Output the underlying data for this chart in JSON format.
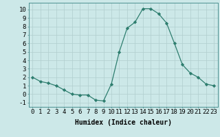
{
  "x": [
    0,
    1,
    2,
    3,
    4,
    5,
    6,
    7,
    8,
    9,
    10,
    11,
    12,
    13,
    14,
    15,
    16,
    17,
    18,
    19,
    20,
    21,
    22,
    23
  ],
  "y": [
    2.0,
    1.5,
    1.3,
    1.0,
    0.5,
    0.0,
    -0.1,
    -0.1,
    -0.7,
    -0.8,
    1.2,
    5.0,
    7.8,
    8.5,
    10.1,
    10.1,
    9.5,
    8.4,
    6.0,
    3.5,
    2.5,
    2.0,
    1.2,
    1.0
  ],
  "line_color": "#2d7d6e",
  "marker": "D",
  "marker_size": 2.2,
  "xlabel": "Humidex (Indice chaleur)",
  "ylim": [
    -1.5,
    10.8
  ],
  "xlim": [
    -0.5,
    23.5
  ],
  "yticks": [
    -1,
    0,
    1,
    2,
    3,
    4,
    5,
    6,
    7,
    8,
    9,
    10
  ],
  "xticks": [
    0,
    1,
    2,
    3,
    4,
    5,
    6,
    7,
    8,
    9,
    10,
    11,
    12,
    13,
    14,
    15,
    16,
    17,
    18,
    19,
    20,
    21,
    22,
    23
  ],
  "bg_color": "#cce8e8",
  "grid_color": "#b0cece",
  "xlabel_fontsize": 7,
  "tick_fontsize": 6.5
}
